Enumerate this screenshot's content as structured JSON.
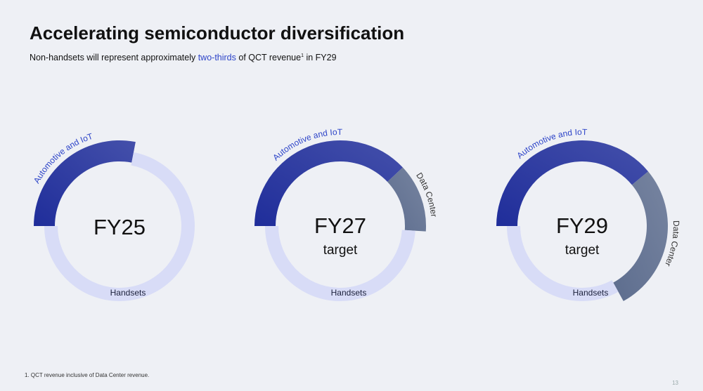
{
  "title": "Accelerating semiconductor diversification",
  "subtitle_parts": [
    "Non-handsets will represent approximately ",
    "two-thirds",
    " of QCT revenue",
    "1",
    " in FY29"
  ],
  "footnote": "1. QCT revenue inclusive of Data Center revenue.",
  "page_number": "13",
  "chart_data": [
    {
      "type": "donut",
      "title": "FY25",
      "categories": [
        "Automotive and IoT",
        "Handsets"
      ],
      "values": [
        28,
        72
      ],
      "colors": [
        "#1f2d9a",
        "#d8dcf7"
      ]
    },
    {
      "type": "donut",
      "title": "FY27",
      "subtitle": "target",
      "categories": [
        "Automotive and IoT",
        "Data Center",
        "Handsets"
      ],
      "values": [
        38,
        13,
        49
      ],
      "colors": [
        "#1f2d9a",
        "#5d6d8e",
        "#d8dcf7"
      ]
    },
    {
      "type": "donut",
      "title": "FY29",
      "subtitle": "target",
      "categories": [
        "Automotive and IoT",
        "Data Center",
        "Handsets"
      ],
      "values": [
        39,
        28,
        33
      ],
      "colors": [
        "#1f2d9a",
        "#5d6d8e",
        "#d8dcf7"
      ]
    }
  ]
}
